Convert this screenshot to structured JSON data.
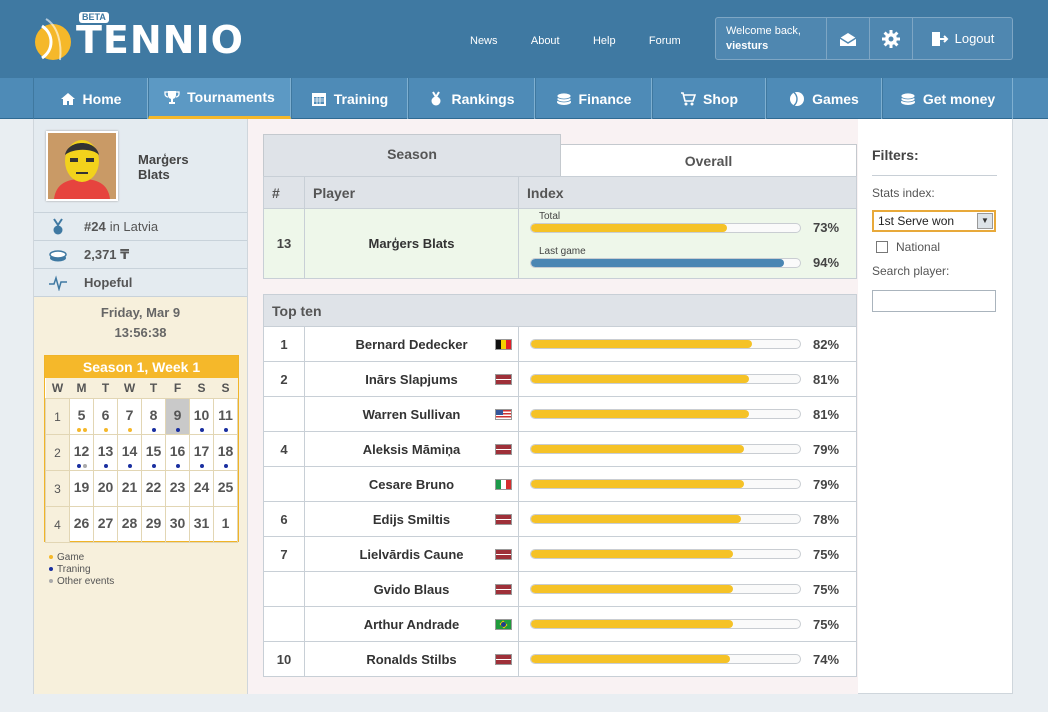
{
  "brand": {
    "name": "TENNIO",
    "badge": "BETA",
    "accent": "#f5b82a",
    "header_color": "#3f79a2"
  },
  "top_links": [
    "News",
    "About",
    "Help",
    "Forum"
  ],
  "user": {
    "welcome": "Welcome back,",
    "username": "viesturs",
    "logout_label": "Logout",
    "icons": [
      "mail-icon",
      "gear-icon",
      "logout-icon"
    ]
  },
  "nav": [
    {
      "label": "Home",
      "icon": "home-icon"
    },
    {
      "label": "Tournaments",
      "icon": "trophy-icon",
      "active": true
    },
    {
      "label": "Training",
      "icon": "calendar-icon"
    },
    {
      "label": "Rankings",
      "icon": "medal-icon"
    },
    {
      "label": "Finance",
      "icon": "coins-icon"
    },
    {
      "label": "Shop",
      "icon": "cart-icon"
    },
    {
      "label": "Games",
      "icon": "ball-icon"
    },
    {
      "label": "Get money",
      "icon": "coins-icon"
    }
  ],
  "profile": {
    "first_name": "Marģers",
    "last_name": "Blats",
    "rank_num": "#24",
    "rank_text": "in Latvia",
    "balance": "2,371 ₸",
    "status": "Hopeful"
  },
  "datetime": {
    "date": "Friday, Mar 9",
    "time": "13:56:38"
  },
  "calendar": {
    "title": "Season 1, Week 1",
    "days": [
      "W",
      "M",
      "T",
      "W",
      "T",
      "F",
      "S",
      "S"
    ],
    "weeks": [
      {
        "wk": "1",
        "days": [
          "5",
          "6",
          "7",
          "8",
          "9",
          "10",
          "11"
        ]
      },
      {
        "wk": "2",
        "days": [
          "12",
          "13",
          "14",
          "15",
          "16",
          "17",
          "18"
        ]
      },
      {
        "wk": "3",
        "days": [
          "19",
          "20",
          "21",
          "22",
          "23",
          "24",
          "25"
        ]
      },
      {
        "wk": "4",
        "days": [
          "26",
          "27",
          "28",
          "29",
          "30",
          "31",
          "1"
        ]
      }
    ],
    "today": "9",
    "legend": [
      "Game",
      "Traning",
      "Other events"
    ]
  },
  "tabs": {
    "season": "Season",
    "overall": "Overall"
  },
  "table_headers": {
    "rank": "#",
    "player": "Player",
    "index": "Index"
  },
  "self": {
    "rank": "13",
    "name": "Marģers Blats",
    "total_label": "Total",
    "total_pct": "73%",
    "total_value": 73,
    "last_label": "Last game",
    "last_pct": "94%",
    "last_value": 94
  },
  "top_ten": {
    "title": "Top ten",
    "rows": [
      {
        "rank": "1",
        "name": "Bernard Dedecker",
        "country": "Belgium",
        "pct": "82%",
        "value": 82
      },
      {
        "rank": "2",
        "name": "Inārs Slapjums",
        "country": "Latvia",
        "pct": "81%",
        "value": 81
      },
      {
        "rank": "",
        "name": "Warren Sullivan",
        "country": "USA",
        "pct": "81%",
        "value": 81
      },
      {
        "rank": "4",
        "name": "Aleksis Māmiņa",
        "country": "Latvia",
        "pct": "79%",
        "value": 79
      },
      {
        "rank": "",
        "name": "Cesare Bruno",
        "country": "Italy",
        "pct": "79%",
        "value": 79
      },
      {
        "rank": "6",
        "name": "Edijs Smiltis",
        "country": "Latvia",
        "pct": "78%",
        "value": 78
      },
      {
        "rank": "7",
        "name": "Lielvārdis Caune",
        "country": "Latvia",
        "pct": "75%",
        "value": 75
      },
      {
        "rank": "",
        "name": "Gvido Blaus",
        "country": "Latvia",
        "pct": "75%",
        "value": 75
      },
      {
        "rank": "",
        "name": "Arthur Andrade",
        "country": "Brazil",
        "pct": "75%",
        "value": 75
      },
      {
        "rank": "10",
        "name": "Ronalds Stilbs",
        "country": "Latvia",
        "pct": "74%",
        "value": 74
      }
    ]
  },
  "filters": {
    "title": "Filters:",
    "stats_label": "Stats index:",
    "stats_value": "1st Serve won",
    "national_label": "National",
    "search_label": "Search player:",
    "search_value": ""
  }
}
